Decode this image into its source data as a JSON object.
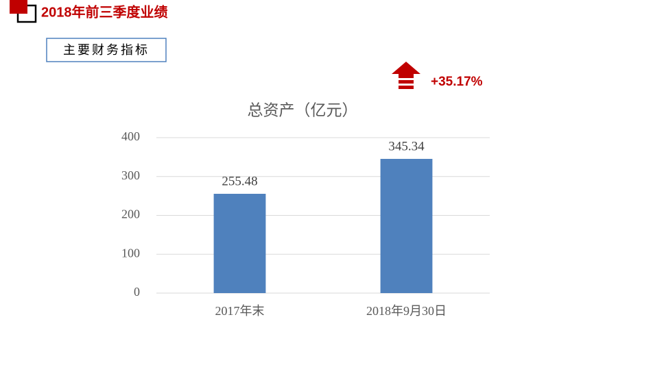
{
  "header": {
    "title": "2018年前三季度业绩"
  },
  "section": {
    "label": "主要财务指标"
  },
  "chart_data": {
    "type": "bar",
    "title": "总资产（亿元）",
    "annotation": "+35.17%",
    "categories": [
      "2017年末",
      "2018年9月30日"
    ],
    "values": [
      255.48,
      345.34
    ],
    "color": "#4f81bd",
    "ylim": [
      0,
      400
    ],
    "yticks": [
      0,
      100,
      200,
      300,
      400
    ],
    "grid": true
  }
}
